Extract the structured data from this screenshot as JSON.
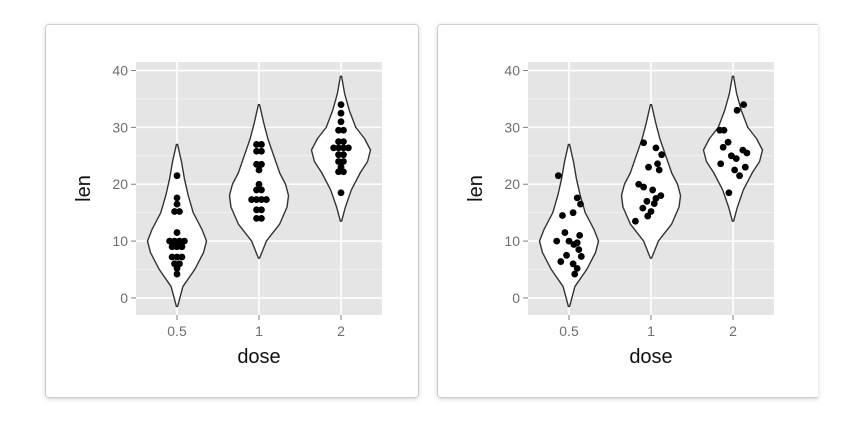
{
  "colors": {
    "panel_bg": "#e5e5e5",
    "grid": "#ffffff",
    "violin_fill": "#ffffff",
    "violin_stroke": "#333333",
    "point": "#000000"
  },
  "chart_data": [
    {
      "type": "violin-dotplot",
      "xlabel": "dose",
      "ylabel": "len",
      "categories": [
        "0.5",
        "1",
        "2"
      ],
      "ylim": [
        -3,
        41.5
      ],
      "yticks": [
        0,
        10,
        20,
        30,
        40
      ],
      "grid": true,
      "violins": [
        {
          "category": "0.5",
          "min": -1.5,
          "max": 27,
          "density": [
            [
              -1.5,
              0.02
            ],
            [
              2,
              0.2
            ],
            [
              5,
              0.6
            ],
            [
              8,
              0.9
            ],
            [
              10,
              1.0
            ],
            [
              12,
              0.85
            ],
            [
              15,
              0.55
            ],
            [
              18,
              0.38
            ],
            [
              21,
              0.25
            ],
            [
              24,
              0.15
            ],
            [
              27,
              0.02
            ]
          ]
        },
        {
          "category": "1",
          "min": 7,
          "max": 34,
          "density": [
            [
              7,
              0.02
            ],
            [
              10,
              0.25
            ],
            [
              13,
              0.7
            ],
            [
              16,
              0.95
            ],
            [
              18,
              1.0
            ],
            [
              20,
              0.9
            ],
            [
              22,
              0.7
            ],
            [
              25,
              0.5
            ],
            [
              28,
              0.3
            ],
            [
              31,
              0.15
            ],
            [
              34,
              0.02
            ]
          ]
        },
        {
          "category": "2",
          "min": 13.5,
          "max": 39,
          "density": [
            [
              13.5,
              0.02
            ],
            [
              16,
              0.15
            ],
            [
              19,
              0.35
            ],
            [
              22,
              0.65
            ],
            [
              24,
              0.9
            ],
            [
              26,
              1.0
            ],
            [
              28,
              0.8
            ],
            [
              30,
              0.5
            ],
            [
              33,
              0.28
            ],
            [
              36,
              0.12
            ],
            [
              39,
              0.02
            ]
          ]
        }
      ],
      "points": [
        {
          "category": "0.5",
          "values": [
            {
              "y": 21.5,
              "dx": 0
            },
            {
              "y": 17.6,
              "dx": 0
            },
            {
              "y": 16.5,
              "dx": 0
            },
            {
              "y": 15.2,
              "dx": -0.03
            },
            {
              "y": 15.2,
              "dx": 0.03
            },
            {
              "y": 11.5,
              "dx": 0
            },
            {
              "y": 10.0,
              "dx": -0.09
            },
            {
              "y": 10.0,
              "dx": -0.03
            },
            {
              "y": 10.0,
              "dx": 0.03
            },
            {
              "y": 10.0,
              "dx": 0.09
            },
            {
              "y": 9.0,
              "dx": -0.06
            },
            {
              "y": 9.0,
              "dx": 0
            },
            {
              "y": 9.0,
              "dx": 0.06
            },
            {
              "y": 7.2,
              "dx": -0.06
            },
            {
              "y": 7.2,
              "dx": 0
            },
            {
              "y": 7.2,
              "dx": 0.06
            },
            {
              "y": 6.0,
              "dx": -0.03
            },
            {
              "y": 6.0,
              "dx": 0.03
            },
            {
              "y": 5.2,
              "dx": 0
            },
            {
              "y": 4.2,
              "dx": 0
            }
          ]
        },
        {
          "category": "1",
          "values": [
            {
              "y": 27.0,
              "dx": -0.03
            },
            {
              "y": 27.0,
              "dx": 0.03
            },
            {
              "y": 25.8,
              "dx": -0.03
            },
            {
              "y": 25.8,
              "dx": 0.03
            },
            {
              "y": 23.5,
              "dx": -0.03
            },
            {
              "y": 23.5,
              "dx": 0.03
            },
            {
              "y": 22.5,
              "dx": 0
            },
            {
              "y": 20.0,
              "dx": 0
            },
            {
              "y": 19.0,
              "dx": -0.03
            },
            {
              "y": 19.0,
              "dx": 0.03
            },
            {
              "y": 17.3,
              "dx": -0.09
            },
            {
              "y": 17.3,
              "dx": -0.03
            },
            {
              "y": 17.3,
              "dx": 0.03
            },
            {
              "y": 17.3,
              "dx": 0.09
            },
            {
              "y": 15.5,
              "dx": -0.03
            },
            {
              "y": 15.5,
              "dx": 0.03
            },
            {
              "y": 14.0,
              "dx": -0.03
            },
            {
              "y": 14.0,
              "dx": 0.03
            }
          ]
        },
        {
          "category": "2",
          "values": [
            {
              "y": 34.0,
              "dx": 0
            },
            {
              "y": 32.5,
              "dx": 0
            },
            {
              "y": 31.0,
              "dx": 0
            },
            {
              "y": 29.5,
              "dx": -0.03
            },
            {
              "y": 29.5,
              "dx": 0.03
            },
            {
              "y": 27.5,
              "dx": -0.03
            },
            {
              "y": 27.5,
              "dx": 0.03
            },
            {
              "y": 26.4,
              "dx": -0.09
            },
            {
              "y": 26.4,
              "dx": -0.03
            },
            {
              "y": 26.4,
              "dx": 0.03
            },
            {
              "y": 26.4,
              "dx": 0.09
            },
            {
              "y": 25.2,
              "dx": -0.03
            },
            {
              "y": 25.2,
              "dx": 0.03
            },
            {
              "y": 24.0,
              "dx": -0.03
            },
            {
              "y": 24.0,
              "dx": 0.03
            },
            {
              "y": 23.0,
              "dx": 0
            },
            {
              "y": 22.2,
              "dx": -0.03
            },
            {
              "y": 22.2,
              "dx": 0.03
            },
            {
              "y": 18.5,
              "dx": 0
            }
          ]
        }
      ]
    },
    {
      "type": "violin-jitter",
      "xlabel": "dose",
      "ylabel": "len",
      "categories": [
        "0.5",
        "1",
        "2"
      ],
      "ylim": [
        -3,
        41.5
      ],
      "yticks": [
        0,
        10,
        20,
        30,
        40
      ],
      "grid": true,
      "violins": [
        {
          "category": "0.5",
          "min": -1.5,
          "max": 27,
          "density": [
            [
              -1.5,
              0.02
            ],
            [
              2,
              0.2
            ],
            [
              5,
              0.6
            ],
            [
              8,
              0.9
            ],
            [
              10,
              1.0
            ],
            [
              12,
              0.85
            ],
            [
              15,
              0.55
            ],
            [
              18,
              0.38
            ],
            [
              21,
              0.25
            ],
            [
              24,
              0.15
            ],
            [
              27,
              0.02
            ]
          ]
        },
        {
          "category": "1",
          "min": 7,
          "max": 34,
          "density": [
            [
              7,
              0.02
            ],
            [
              10,
              0.25
            ],
            [
              13,
              0.7
            ],
            [
              16,
              0.95
            ],
            [
              18,
              1.0
            ],
            [
              20,
              0.9
            ],
            [
              22,
              0.7
            ],
            [
              25,
              0.5
            ],
            [
              28,
              0.3
            ],
            [
              31,
              0.15
            ],
            [
              34,
              0.02
            ]
          ]
        },
        {
          "category": "2",
          "min": 13.5,
          "max": 39,
          "density": [
            [
              13.5,
              0.02
            ],
            [
              16,
              0.15
            ],
            [
              19,
              0.35
            ],
            [
              22,
              0.65
            ],
            [
              24,
              0.9
            ],
            [
              26,
              1.0
            ],
            [
              28,
              0.8
            ],
            [
              30,
              0.5
            ],
            [
              33,
              0.28
            ],
            [
              36,
              0.12
            ],
            [
              39,
              0.02
            ]
          ]
        }
      ],
      "points": [
        {
          "category": "0.5",
          "values": [
            {
              "y": 21.5,
              "dx": -0.13
            },
            {
              "y": 17.6,
              "dx": 0.1
            },
            {
              "y": 16.5,
              "dx": 0.14
            },
            {
              "y": 15.0,
              "dx": 0.05
            },
            {
              "y": 14.5,
              "dx": -0.08
            },
            {
              "y": 11.5,
              "dx": -0.05
            },
            {
              "y": 11.0,
              "dx": 0.13
            },
            {
              "y": 10.0,
              "dx": -0.15
            },
            {
              "y": 10.0,
              "dx": 0.0
            },
            {
              "y": 9.7,
              "dx": 0.1
            },
            {
              "y": 9.4,
              "dx": 0.06
            },
            {
              "y": 8.5,
              "dx": 0.12
            },
            {
              "y": 7.5,
              "dx": -0.03
            },
            {
              "y": 7.3,
              "dx": 0.15
            },
            {
              "y": 6.4,
              "dx": -0.1
            },
            {
              "y": 6.0,
              "dx": 0.05
            },
            {
              "y": 5.2,
              "dx": 0.1
            },
            {
              "y": 4.2,
              "dx": 0.07
            }
          ]
        },
        {
          "category": "1",
          "values": [
            {
              "y": 27.3,
              "dx": -0.09
            },
            {
              "y": 26.4,
              "dx": 0.06
            },
            {
              "y": 25.2,
              "dx": 0.13
            },
            {
              "y": 23.6,
              "dx": 0.08
            },
            {
              "y": 23.0,
              "dx": -0.03
            },
            {
              "y": 22.5,
              "dx": 0.1
            },
            {
              "y": 20.0,
              "dx": -0.15
            },
            {
              "y": 19.5,
              "dx": -0.09
            },
            {
              "y": 19.0,
              "dx": 0.02
            },
            {
              "y": 18.0,
              "dx": 0.12
            },
            {
              "y": 17.5,
              "dx": 0.06
            },
            {
              "y": 17.0,
              "dx": -0.05
            },
            {
              "y": 16.6,
              "dx": 0.04
            },
            {
              "y": 15.8,
              "dx": -0.1
            },
            {
              "y": 15.2,
              "dx": 0.0
            },
            {
              "y": 14.4,
              "dx": -0.04
            },
            {
              "y": 13.5,
              "dx": -0.19
            }
          ]
        },
        {
          "category": "2",
          "values": [
            {
              "y": 34.0,
              "dx": 0.13
            },
            {
              "y": 33.0,
              "dx": 0.05
            },
            {
              "y": 29.5,
              "dx": -0.16
            },
            {
              "y": 29.5,
              "dx": -0.11
            },
            {
              "y": 27.4,
              "dx": -0.06
            },
            {
              "y": 26.5,
              "dx": -0.12
            },
            {
              "y": 26.0,
              "dx": 0.12
            },
            {
              "y": 25.5,
              "dx": 0.17
            },
            {
              "y": 25.0,
              "dx": -0.02
            },
            {
              "y": 24.5,
              "dx": 0.04
            },
            {
              "y": 23.6,
              "dx": -0.15
            },
            {
              "y": 23.0,
              "dx": 0.15
            },
            {
              "y": 22.5,
              "dx": 0.02
            },
            {
              "y": 21.5,
              "dx": 0.08
            },
            {
              "y": 18.5,
              "dx": -0.05
            }
          ]
        }
      ]
    }
  ]
}
